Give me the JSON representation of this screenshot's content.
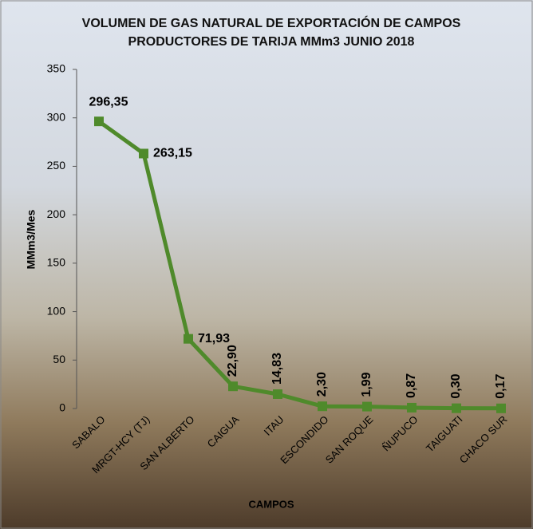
{
  "chart_data": {
    "type": "line",
    "title": "VOLUMEN DE GAS NATURAL DE EXPORTACIÓN DE CAMPOS PRODUCTORES DE TARIJA MMm3 JUNIO 2018",
    "x_label": "CAMPOS",
    "y_label": "MMm3/Mes",
    "categories": [
      "SABALO",
      "MRGT-HCY (TJ)",
      "SAN ALBERTO",
      "CAIGUA",
      "ITAU",
      "ESCONDIDO",
      "SAN ROQUE",
      "ÑUPUCO",
      "TAIGUATI",
      "CHACO SUR"
    ],
    "values": [
      296.35,
      263.15,
      71.93,
      22.9,
      14.83,
      2.3,
      1.99,
      0.87,
      0.3,
      0.17
    ],
    "value_labels": [
      "296,35",
      "263,15",
      "71,93",
      "22,90",
      "14,83",
      "2,30",
      "1,99",
      "0,87",
      "0,30",
      "0,17"
    ],
    "color": "#4f8a2b",
    "ylim": [
      0,
      350
    ],
    "yticks": [
      0,
      50,
      100,
      150,
      200,
      250,
      300,
      350
    ]
  }
}
